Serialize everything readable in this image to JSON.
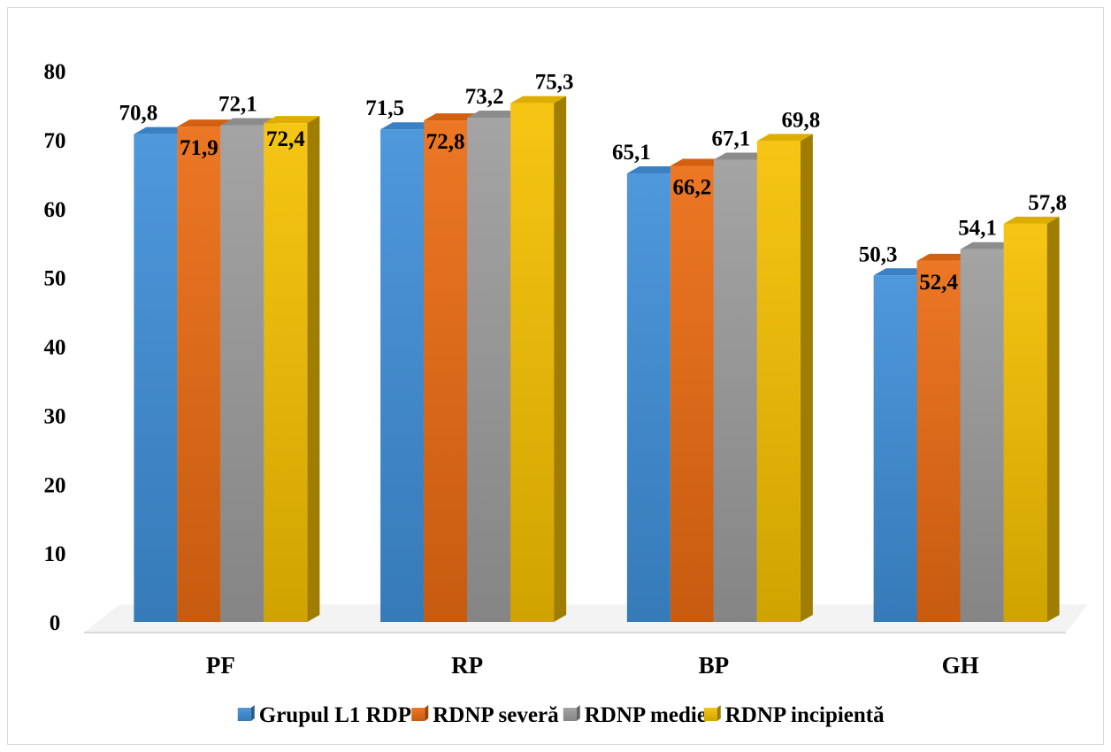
{
  "chart_data": {
    "type": "bar",
    "categories": [
      "PF",
      "RP",
      "BP",
      "GH"
    ],
    "series": [
      {
        "name": "Grupul L1 RDP",
        "values": [
          70.8,
          71.5,
          65.1,
          50.3
        ],
        "labels": [
          "70,8",
          "71,5",
          "65,1",
          "50,3"
        ],
        "color": "#3f8fd9"
      },
      {
        "name": "RDNP severă",
        "values": [
          71.9,
          72.8,
          66.2,
          52.4
        ],
        "labels": [
          "71,9",
          "72,8",
          "66,2",
          "52,4"
        ],
        "color": "#ea6b12"
      },
      {
        "name": "RDNP medie",
        "values": [
          72.1,
          73.2,
          67.1,
          54.1
        ],
        "labels": [
          "72,1",
          "73,2",
          "67,1",
          "54,1"
        ],
        "color": "#9c9c9c"
      },
      {
        "name": "RDNP incipientă",
        "values": [
          72.4,
          75.3,
          69.8,
          57.8
        ],
        "labels": [
          "72,4",
          "75,3",
          "69,8",
          "57,8"
        ],
        "color": "#f5c000"
      }
    ],
    "yticks": [
      "0",
      "10",
      "20",
      "30",
      "40",
      "50",
      "60",
      "70",
      "80"
    ],
    "ylim": [
      0,
      80
    ],
    "legend": "bottom",
    "grid": false,
    "title": "",
    "xlabel": "",
    "ylabel": ""
  }
}
